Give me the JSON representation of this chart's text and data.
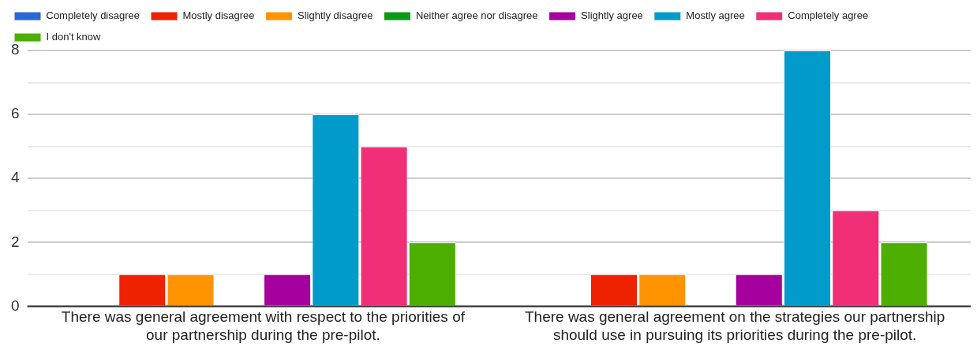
{
  "chart_data": {
    "type": "bar",
    "categories": [
      "There was general agreement with respect to the priorities of our partnership during the pre-pilot.",
      "There was general agreement on the strategies our partnership should use in pursuing its priorities during the pre-pilot."
    ],
    "series": [
      {
        "name": "Completely disagree",
        "color": "#2a67d6",
        "values": [
          0,
          0
        ]
      },
      {
        "name": "Mostly disagree",
        "color": "#ee2100",
        "values": [
          1,
          1
        ]
      },
      {
        "name": "Slightly disagree",
        "color": "#ff9400",
        "values": [
          1,
          1
        ]
      },
      {
        "name": "Neither agree nor disagree",
        "color": "#0a9a16",
        "values": [
          0,
          0
        ]
      },
      {
        "name": "Slightly agree",
        "color": "#a6009f",
        "values": [
          1,
          1
        ]
      },
      {
        "name": "Mostly agree",
        "color": "#009bcb",
        "values": [
          6,
          8
        ]
      },
      {
        "name": "Completely agree",
        "color": "#f02f77",
        "values": [
          5,
          3
        ]
      },
      {
        "name": "I don't know",
        "color": "#4caf00",
        "values": [
          2,
          2
        ]
      }
    ],
    "ylim": [
      0,
      8
    ],
    "yticks": [
      0,
      {
        "value": 1,
        "label": null
      },
      2,
      {
        "value": 3,
        "label": null
      },
      4,
      {
        "value": 5,
        "label": null
      },
      6,
      {
        "value": 7,
        "label": null
      },
      8
    ],
    "grid": "y",
    "legend": "top"
  }
}
